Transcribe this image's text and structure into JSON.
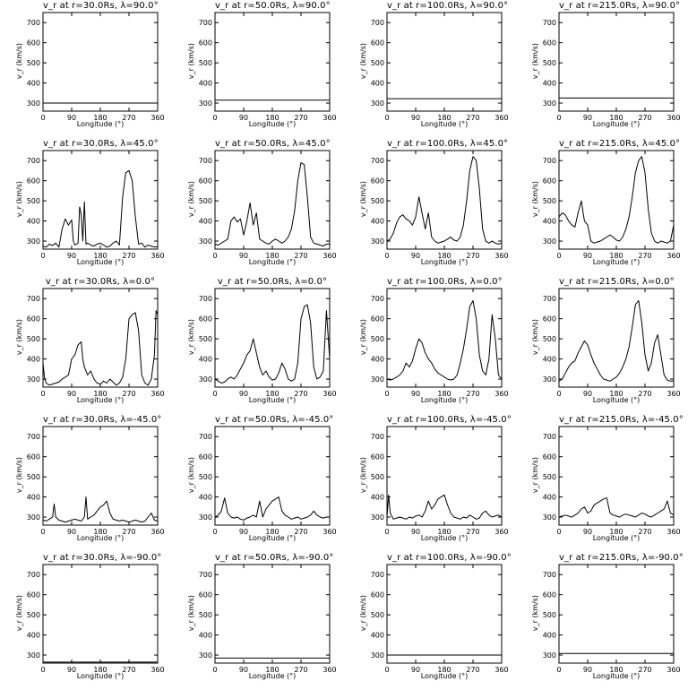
{
  "chart_data": {
    "type": "line",
    "layout": "5x4 grid of small multiples",
    "xlabel": "Longitude (°)",
    "ylabel": "v_r (km/s)",
    "xlim": [
      0,
      360
    ],
    "ylim": [
      260,
      750
    ],
    "xticks": [
      0,
      90,
      180,
      270,
      360
    ],
    "yticks": [
      300,
      400,
      500,
      600,
      700
    ],
    "line_color": "#000000",
    "panels": [
      {
        "title": "v_r at r=30.0Rs, λ=90.0°",
        "x": [
          0,
          360
        ],
        "y": [
          300,
          300
        ]
      },
      {
        "title": "v_r at r=50.0Rs, λ=90.0°",
        "x": [
          0,
          360
        ],
        "y": [
          315,
          315
        ]
      },
      {
        "title": "v_r at r=100.0Rs, λ=90.0°",
        "x": [
          0,
          360
        ],
        "y": [
          322,
          322
        ]
      },
      {
        "title": "v_r at r=215.0Rs, λ=90.0°",
        "x": [
          0,
          360
        ],
        "y": [
          325,
          325
        ]
      },
      {
        "title": "v_r at r=30.0Rs, λ=45.0°",
        "x": [
          0,
          10,
          20,
          30,
          40,
          50,
          60,
          70,
          80,
          90,
          95,
          100,
          110,
          115,
          120,
          125,
          130,
          135,
          140,
          150,
          160,
          170,
          180,
          190,
          200,
          210,
          220,
          230,
          240,
          250,
          260,
          270,
          280,
          290,
          300,
          310,
          320,
          330,
          340,
          350,
          360
        ],
        "y": [
          275,
          270,
          285,
          278,
          290,
          270,
          360,
          410,
          380,
          405,
          300,
          280,
          290,
          470,
          430,
          300,
          495,
          285,
          290,
          280,
          275,
          285,
          290,
          280,
          270,
          275,
          290,
          300,
          280,
          520,
          640,
          650,
          600,
          420,
          285,
          290,
          270,
          280,
          275,
          270,
          272
        ]
      },
      {
        "title": "v_r at r=50.0Rs, λ=45.0°",
        "x": [
          0,
          10,
          20,
          30,
          40,
          50,
          60,
          70,
          80,
          90,
          100,
          110,
          120,
          130,
          140,
          150,
          160,
          170,
          180,
          190,
          200,
          210,
          220,
          230,
          240,
          250,
          260,
          270,
          280,
          290,
          300,
          310,
          320,
          330,
          340,
          350,
          360
        ],
        "y": [
          285,
          280,
          290,
          300,
          310,
          400,
          420,
          395,
          410,
          330,
          400,
          490,
          380,
          440,
          310,
          300,
          290,
          285,
          300,
          310,
          300,
          290,
          300,
          320,
          360,
          450,
          600,
          690,
          680,
          520,
          320,
          290,
          285,
          280,
          275,
          285,
          285
        ]
      },
      {
        "title": "v_r at r=100.0Rs, λ=45.0°",
        "x": [
          0,
          10,
          20,
          30,
          40,
          50,
          60,
          70,
          80,
          90,
          100,
          110,
          120,
          130,
          140,
          150,
          160,
          170,
          180,
          190,
          200,
          210,
          220,
          230,
          240,
          250,
          260,
          270,
          280,
          290,
          300,
          310,
          320,
          330,
          340,
          350,
          360
        ],
        "y": [
          300,
          310,
          340,
          390,
          420,
          430,
          410,
          400,
          380,
          420,
          520,
          440,
          360,
          440,
          320,
          300,
          290,
          295,
          300,
          310,
          320,
          305,
          300,
          320,
          380,
          500,
          650,
          720,
          700,
          560,
          360,
          300,
          290,
          300,
          290,
          285,
          290
        ]
      },
      {
        "title": "v_r at r=215.0Rs, λ=45.0°",
        "x": [
          0,
          10,
          20,
          30,
          40,
          50,
          60,
          70,
          80,
          90,
          100,
          110,
          120,
          130,
          140,
          150,
          160,
          170,
          180,
          190,
          200,
          210,
          220,
          230,
          240,
          250,
          260,
          270,
          280,
          290,
          300,
          310,
          320,
          330,
          340,
          350,
          360
        ],
        "y": [
          420,
          440,
          430,
          400,
          380,
          370,
          440,
          500,
          400,
          380,
          300,
          290,
          295,
          300,
          310,
          320,
          330,
          320,
          305,
          300,
          320,
          360,
          420,
          520,
          640,
          700,
          720,
          640,
          460,
          340,
          300,
          290,
          300,
          295,
          290,
          300,
          380
        ]
      },
      {
        "title": "v_r at r=30.0Rs, λ=0.0°",
        "x": [
          0,
          5,
          10,
          20,
          30,
          40,
          50,
          60,
          70,
          80,
          90,
          100,
          110,
          120,
          125,
          130,
          140,
          150,
          160,
          170,
          180,
          190,
          200,
          210,
          220,
          230,
          240,
          250,
          260,
          270,
          280,
          290,
          300,
          310,
          320,
          330,
          340,
          350,
          355,
          360
        ],
        "y": [
          380,
          300,
          280,
          270,
          275,
          280,
          285,
          300,
          310,
          320,
          400,
          420,
          470,
          485,
          400,
          360,
          320,
          340,
          300,
          280,
          275,
          290,
          280,
          300,
          285,
          270,
          280,
          310,
          400,
          600,
          620,
          630,
          540,
          320,
          280,
          270,
          300,
          420,
          640,
          620
        ]
      },
      {
        "title": "v_r at r=50.0Rs, λ=0.0°",
        "x": [
          0,
          10,
          20,
          30,
          40,
          50,
          60,
          70,
          80,
          90,
          100,
          110,
          120,
          130,
          140,
          150,
          160,
          170,
          180,
          190,
          200,
          210,
          220,
          230,
          240,
          250,
          260,
          270,
          280,
          290,
          300,
          310,
          320,
          330,
          340,
          350,
          360
        ],
        "y": [
          300,
          290,
          280,
          285,
          300,
          310,
          300,
          320,
          350,
          380,
          420,
          440,
          500,
          430,
          360,
          320,
          340,
          310,
          295,
          300,
          330,
          380,
          350,
          300,
          290,
          300,
          380,
          600,
          660,
          670,
          580,
          360,
          300,
          310,
          340,
          640,
          400
        ]
      },
      {
        "title": "v_r at r=100.0Rs, λ=0.0°",
        "x": [
          0,
          10,
          20,
          30,
          40,
          50,
          60,
          70,
          80,
          90,
          100,
          110,
          120,
          130,
          140,
          150,
          160,
          170,
          180,
          190,
          200,
          210,
          220,
          230,
          240,
          250,
          260,
          270,
          280,
          290,
          300,
          310,
          320,
          330,
          340,
          350,
          360
        ],
        "y": [
          300,
          295,
          300,
          310,
          320,
          340,
          380,
          360,
          390,
          450,
          500,
          480,
          430,
          400,
          380,
          350,
          330,
          320,
          310,
          300,
          295,
          300,
          320,
          380,
          450,
          550,
          660,
          690,
          600,
          420,
          340,
          320,
          400,
          620,
          500,
          320,
          300
        ]
      },
      {
        "title": "v_r at r=215.0Rs, λ=0.0°",
        "x": [
          0,
          10,
          20,
          30,
          40,
          50,
          60,
          70,
          80,
          90,
          100,
          110,
          120,
          130,
          140,
          150,
          160,
          170,
          180,
          190,
          200,
          210,
          220,
          230,
          240,
          250,
          260,
          270,
          280,
          290,
          300,
          310,
          320,
          330,
          340,
          350,
          360
        ],
        "y": [
          290,
          300,
          330,
          360,
          380,
          390,
          430,
          460,
          490,
          470,
          420,
          380,
          350,
          320,
          300,
          295,
          290,
          300,
          310,
          330,
          360,
          400,
          460,
          560,
          670,
          690,
          580,
          420,
          340,
          380,
          480,
          520,
          420,
          320,
          295,
          290,
          290
        ]
      },
      {
        "title": "v_r at r=30.0Rs, λ=-45.0°",
        "x": [
          0,
          10,
          20,
          30,
          35,
          40,
          50,
          60,
          70,
          80,
          90,
          100,
          110,
          120,
          130,
          135,
          140,
          150,
          160,
          170,
          180,
          190,
          200,
          210,
          220,
          230,
          240,
          250,
          260,
          270,
          280,
          290,
          300,
          310,
          320,
          330,
          340,
          350,
          360
        ],
        "y": [
          285,
          280,
          290,
          300,
          365,
          300,
          285,
          280,
          275,
          280,
          285,
          290,
          285,
          280,
          300,
          400,
          290,
          300,
          310,
          330,
          350,
          360,
          380,
          320,
          290,
          285,
          280,
          285,
          280,
          275,
          280,
          285,
          280,
          275,
          280,
          300,
          320,
          285,
          280
        ]
      },
      {
        "title": "v_r at r=50.0Rs, λ=-45.0°",
        "x": [
          0,
          10,
          20,
          30,
          40,
          50,
          60,
          70,
          80,
          90,
          100,
          110,
          120,
          130,
          140,
          150,
          160,
          170,
          180,
          190,
          200,
          210,
          220,
          230,
          240,
          250,
          260,
          270,
          280,
          290,
          300,
          310,
          320,
          330,
          340,
          350,
          360
        ],
        "y": [
          300,
          310,
          330,
          395,
          320,
          300,
          295,
          300,
          290,
          285,
          295,
          300,
          310,
          300,
          380,
          300,
          340,
          360,
          380,
          390,
          400,
          330,
          310,
          300,
          290,
          295,
          300,
          290,
          295,
          300,
          310,
          330,
          310,
          300,
          295,
          300,
          300
        ]
      },
      {
        "title": "v_r at r=100.0Rs, λ=-45.0°",
        "x": [
          0,
          5,
          10,
          20,
          30,
          40,
          50,
          60,
          70,
          80,
          90,
          100,
          110,
          120,
          130,
          140,
          150,
          160,
          170,
          180,
          190,
          200,
          210,
          220,
          230,
          240,
          250,
          260,
          270,
          280,
          290,
          300,
          310,
          320,
          330,
          340,
          350,
          360
        ],
        "y": [
          300,
          410,
          320,
          290,
          295,
          300,
          295,
          290,
          300,
          295,
          305,
          310,
          300,
          330,
          380,
          340,
          360,
          390,
          400,
          410,
          360,
          320,
          300,
          295,
          290,
          300,
          295,
          310,
          300,
          290,
          295,
          320,
          330,
          310,
          300,
          305,
          310,
          300
        ]
      },
      {
        "title": "v_r at r=215.0Rs, λ=-45.0°",
        "x": [
          0,
          10,
          20,
          30,
          40,
          50,
          60,
          70,
          80,
          90,
          100,
          110,
          120,
          130,
          140,
          150,
          160,
          170,
          180,
          190,
          200,
          210,
          220,
          230,
          240,
          250,
          260,
          270,
          280,
          290,
          300,
          310,
          320,
          330,
          340,
          350,
          360
        ],
        "y": [
          300,
          305,
          310,
          305,
          300,
          310,
          320,
          340,
          350,
          320,
          330,
          360,
          370,
          380,
          390,
          395,
          320,
          310,
          305,
          300,
          310,
          315,
          310,
          305,
          300,
          310,
          320,
          315,
          305,
          300,
          310,
          320,
          330,
          340,
          380,
          320,
          310
        ]
      },
      {
        "title": "v_r at r=30.0Rs, λ=-90.0°",
        "x": [
          0,
          360
        ],
        "y": [
          265,
          265
        ]
      },
      {
        "title": "v_r at r=50.0Rs, λ=-90.0°",
        "x": [
          0,
          360
        ],
        "y": [
          285,
          285
        ]
      },
      {
        "title": "v_r at r=100.0Rs, λ=-90.0°",
        "x": [
          0,
          360
        ],
        "y": [
          300,
          300
        ]
      },
      {
        "title": "v_r at r=215.0Rs, λ=-90.0°",
        "x": [
          0,
          360
        ],
        "y": [
          308,
          308
        ]
      }
    ]
  }
}
